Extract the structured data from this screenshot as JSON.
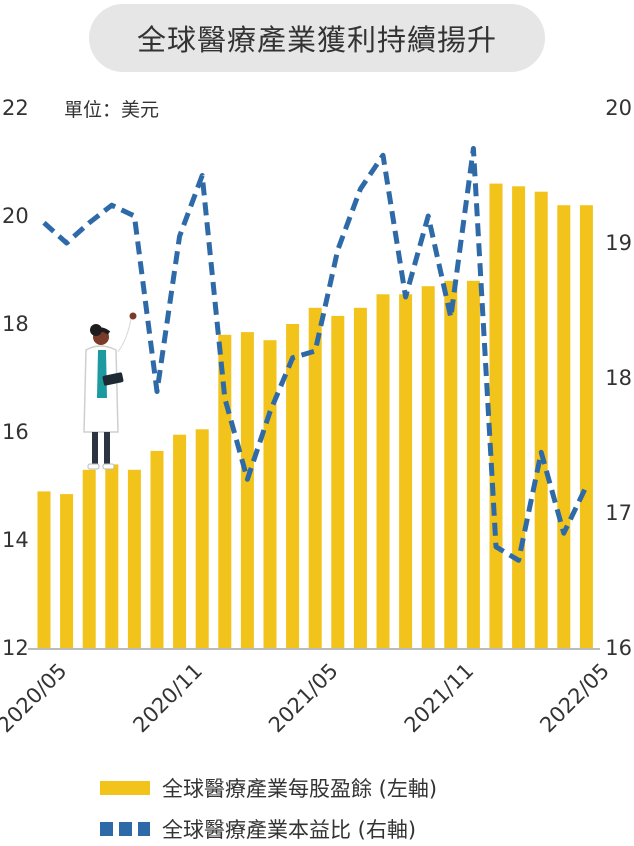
{
  "title": "全球醫療產業獲利持續揚升",
  "unit_label": "單位：美元",
  "legend": {
    "bar_label": "全球醫療產業每股盈餘 (左軸)",
    "line_label": "全球醫療產業本益比 (右軸)"
  },
  "colors": {
    "bar": "#f2c31a",
    "line": "#2e6aa8",
    "axis": "#bbbbbb"
  },
  "chart_data": {
    "type": "bar",
    "x_tick_labels": [
      "2020/05",
      "2020/11",
      "2021/05",
      "2021/11",
      "2022/05"
    ],
    "x_tick_indices": [
      0,
      6,
      12,
      18,
      24
    ],
    "left_axis": {
      "ylim": [
        12,
        22
      ],
      "ticks": [
        12,
        14,
        16,
        18,
        20,
        22
      ]
    },
    "right_axis": {
      "ylim": [
        16,
        20
      ],
      "ticks": [
        16,
        17,
        18,
        19,
        20
      ]
    },
    "series": [
      {
        "type": "bar",
        "axis": "left",
        "values": [
          14.9,
          14.85,
          15.3,
          15.4,
          15.3,
          15.65,
          15.95,
          16.05,
          17.8,
          17.85,
          17.7,
          18.0,
          18.3,
          18.15,
          18.3,
          18.55,
          18.55,
          18.7,
          18.8,
          18.8,
          20.6,
          20.55,
          20.45,
          20.2,
          20.2
        ]
      },
      {
        "type": "line",
        "axis": "right",
        "style": "dashed",
        "values": [
          19.15,
          19.0,
          19.15,
          19.28,
          19.2,
          17.9,
          19.05,
          19.5,
          17.85,
          17.25,
          17.75,
          18.15,
          18.2,
          18.95,
          19.4,
          19.65,
          18.6,
          19.2,
          18.45,
          19.7,
          16.75,
          16.65,
          17.45,
          16.85,
          17.2
        ]
      }
    ]
  }
}
